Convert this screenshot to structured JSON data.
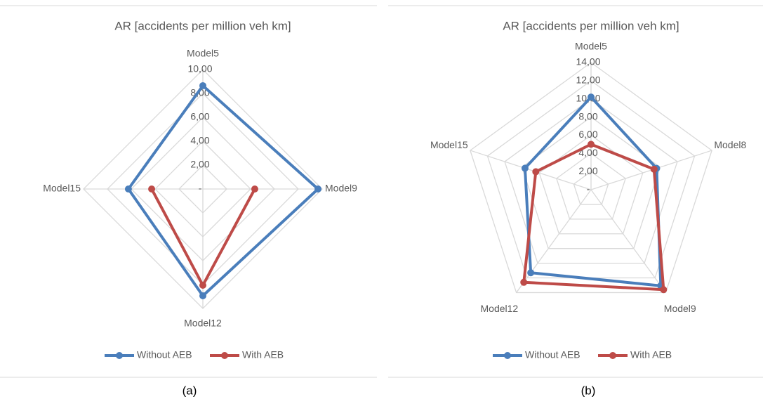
{
  "chart_data": [
    {
      "type": "radar",
      "title": "AR [accidents per million veh km]",
      "caption": "(a)",
      "categories": [
        "Model5",
        "Model9",
        "Model12",
        "Model15"
      ],
      "series": [
        {
          "name": "Without AEB",
          "color": "#4a7ebb",
          "values": [
            8.65,
            9.65,
            8.94,
            6.24
          ]
        },
        {
          "name": "With AEB",
          "color": "#be4b48",
          "values": [
            null,
            4.35,
            8.06,
            4.29
          ]
        }
      ],
      "rlim": [
        0,
        10
      ],
      "rticks": [
        {
          "value": 0,
          "label": "-"
        },
        {
          "value": 2,
          "label": "2,00"
        },
        {
          "value": 4,
          "label": "4,00"
        },
        {
          "value": 6,
          "label": "6,00"
        },
        {
          "value": 8,
          "label": "8,00"
        },
        {
          "value": 10,
          "label": "10,00"
        }
      ],
      "grid": true,
      "legend": "bottom"
    },
    {
      "type": "radar",
      "title": "AR [accidents per million veh km]",
      "caption": "(b)",
      "categories": [
        "Model5",
        "Model8",
        "Model9",
        "Model12",
        "Model15"
      ],
      "series": [
        {
          "name": "Without AEB",
          "color": "#4a7ebb",
          "values": [
            10.2,
            7.6,
            13.07,
            11.3,
            7.65
          ]
        },
        {
          "name": "With AEB",
          "color": "#be4b48",
          "values": [
            5.0,
            7.3,
            13.6,
            12.6,
            6.4
          ]
        }
      ],
      "rlim": [
        0,
        14
      ],
      "rticks": [
        {
          "value": 0,
          "label": "-"
        },
        {
          "value": 2,
          "label": "2,00"
        },
        {
          "value": 4,
          "label": "4,00"
        },
        {
          "value": 6,
          "label": "6,00"
        },
        {
          "value": 8,
          "label": "8,00"
        },
        {
          "value": 10,
          "label": "10,00"
        },
        {
          "value": 12,
          "label": "12,00"
        },
        {
          "value": 14,
          "label": "14,00"
        }
      ],
      "grid": true,
      "legend": "bottom"
    }
  ]
}
